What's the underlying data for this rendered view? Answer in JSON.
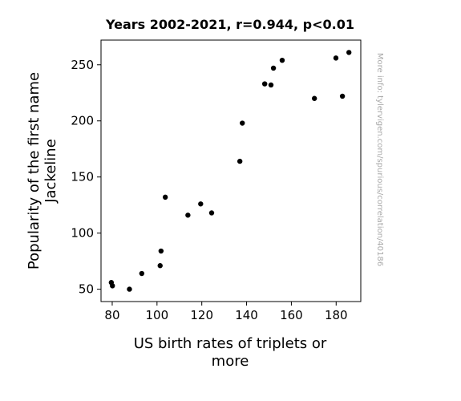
{
  "chart_data": {
    "type": "scatter",
    "title": "Years 2002-2021, r=0.944, p<0.01",
    "xlabel": [
      "US birth rates of triplets or",
      "more"
    ],
    "ylabel": [
      "Popularity of the first name",
      "Jackeline"
    ],
    "xlim": [
      75,
      191
    ],
    "ylim": [
      39,
      272
    ],
    "xticks": [
      80,
      100,
      120,
      140,
      160,
      180
    ],
    "yticks": [
      50,
      100,
      150,
      200,
      250
    ],
    "grid": false,
    "legend": "none",
    "marker_color": "#000000",
    "points": [
      {
        "x": 79.6,
        "y": 56
      },
      {
        "x": 80.1,
        "y": 53
      },
      {
        "x": 87.7,
        "y": 50
      },
      {
        "x": 93.2,
        "y": 64
      },
      {
        "x": 101.4,
        "y": 71
      },
      {
        "x": 101.8,
        "y": 84
      },
      {
        "x": 103.7,
        "y": 132
      },
      {
        "x": 113.8,
        "y": 116
      },
      {
        "x": 119.5,
        "y": 126
      },
      {
        "x": 124.4,
        "y": 118
      },
      {
        "x": 137.0,
        "y": 164
      },
      {
        "x": 138.1,
        "y": 198
      },
      {
        "x": 148.1,
        "y": 233
      },
      {
        "x": 150.9,
        "y": 232
      },
      {
        "x": 152.0,
        "y": 247
      },
      {
        "x": 155.9,
        "y": 254
      },
      {
        "x": 170.3,
        "y": 220
      },
      {
        "x": 179.9,
        "y": 256
      },
      {
        "x": 182.8,
        "y": 222
      },
      {
        "x": 185.7,
        "y": 261
      }
    ]
  },
  "watermark": "More info: tylervigen.com/spurious/correlation/40186"
}
